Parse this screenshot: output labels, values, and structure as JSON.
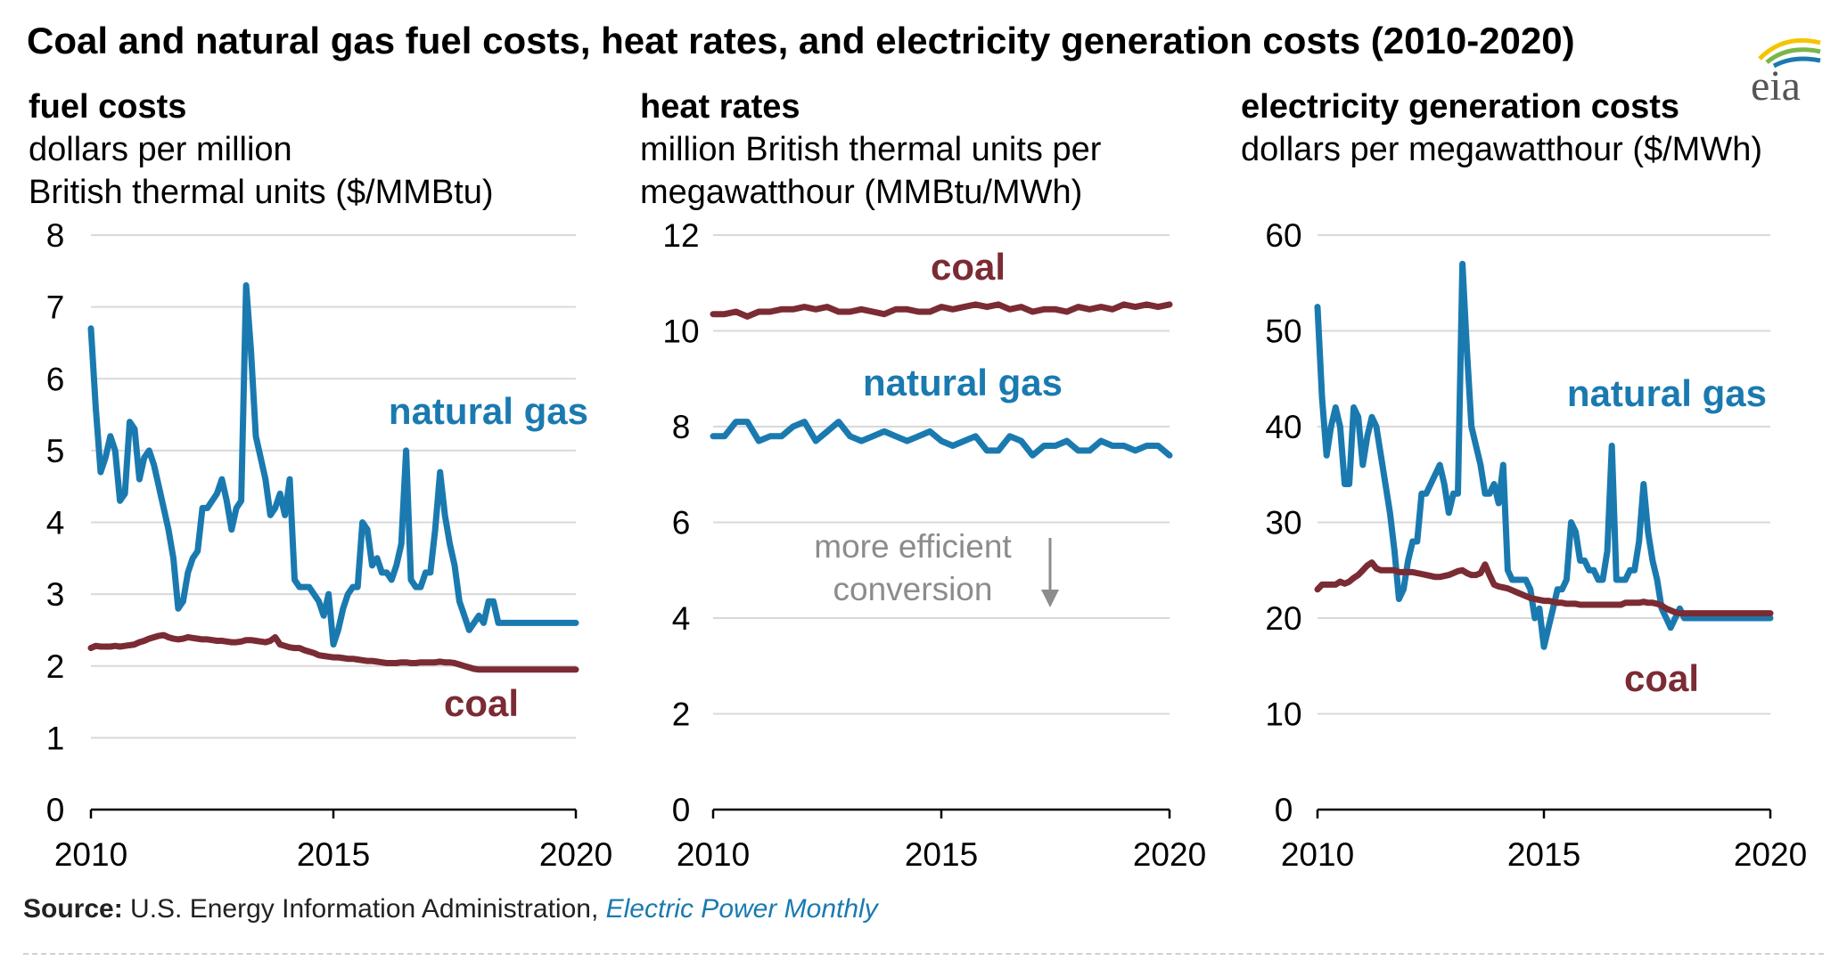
{
  "title": "Coal and natural gas fuel costs, heat rates, and electricity generation costs (2010-2020)",
  "logo_text": "eia",
  "source": {
    "label": "Source:",
    "text": "U.S. Energy Information Administration,",
    "publication": "Electric Power Monthly"
  },
  "colors": {
    "natural_gas": "#1a7ab0",
    "coal": "#7b2b33",
    "grid": "#d9d9d9",
    "annotation": "#8c8c8c"
  },
  "chart_data": [
    {
      "type": "line",
      "title": "fuel costs",
      "subtitle": [
        "dollars per million",
        "British thermal units ($/MMBtu)"
      ],
      "x": [
        2010.0,
        2010.1,
        2010.2,
        2010.3,
        2010.4,
        2010.5,
        2010.6,
        2010.7,
        2010.8,
        2010.9,
        2011.0,
        2011.1,
        2011.2,
        2011.3,
        2011.4,
        2011.5,
        2011.6,
        2011.7,
        2011.8,
        2011.9,
        2012.0,
        2012.1,
        2012.2,
        2012.3,
        2012.4,
        2012.5,
        2012.6,
        2012.7,
        2012.8,
        2012.9,
        2013.0,
        2013.1,
        2013.2,
        2013.3,
        2013.4,
        2013.5,
        2013.6,
        2013.7,
        2013.8,
        2013.9,
        2014.0,
        2014.1,
        2014.2,
        2014.3,
        2014.4,
        2014.5,
        2014.6,
        2014.7,
        2014.8,
        2014.9,
        2015.0,
        2015.1,
        2015.2,
        2015.3,
        2015.4,
        2015.5,
        2015.6,
        2015.7,
        2015.8,
        2015.9,
        2016.0,
        2016.1,
        2016.2,
        2016.3,
        2016.4,
        2016.5,
        2016.6,
        2016.7,
        2016.8,
        2016.9,
        2017.0,
        2017.1,
        2017.2,
        2017.3,
        2017.4,
        2017.5,
        2017.6,
        2017.7,
        2017.8,
        2017.9,
        2018.0,
        2018.1,
        2018.2,
        2018.3,
        2018.4,
        2018.5,
        2018.6,
        2018.7,
        2018.8,
        2018.9,
        2019.0,
        2019.1,
        2019.2,
        2019.3,
        2019.4,
        2019.5,
        2019.6,
        2019.7,
        2019.8,
        2019.9,
        2020.0
      ],
      "series": [
        {
          "name": "natural gas",
          "values": [
            6.7,
            5.6,
            4.7,
            4.9,
            5.2,
            5.0,
            4.3,
            4.4,
            5.4,
            5.3,
            4.6,
            4.9,
            5.0,
            4.8,
            4.5,
            4.2,
            3.9,
            3.5,
            2.8,
            2.9,
            3.3,
            3.5,
            3.6,
            4.2,
            4.2,
            4.3,
            4.4,
            4.6,
            4.3,
            3.9,
            4.2,
            4.3,
            7.3,
            6.4,
            5.2,
            4.9,
            4.6,
            4.1,
            4.2,
            4.4,
            4.1,
            4.6,
            3.2,
            3.1,
            3.1,
            3.1,
            3.0,
            2.9,
            2.7,
            3.0,
            2.3,
            2.5,
            2.8,
            3.0,
            3.1,
            3.1,
            4.0,
            3.9,
            3.4,
            3.5,
            3.3,
            3.3,
            3.2,
            3.4,
            3.7,
            5.0,
            3.2,
            3.1,
            3.1,
            3.3,
            3.3,
            3.9,
            4.7,
            4.1,
            3.7,
            3.4,
            2.9,
            2.7,
            2.5,
            2.6,
            2.7,
            2.6,
            2.9,
            2.9,
            2.6,
            2.6,
            2.6,
            2.6,
            2.6,
            2.6,
            2.6,
            2.6,
            2.6,
            2.6,
            2.6,
            2.6,
            2.6,
            2.6,
            2.6,
            2.6,
            2.6
          ]
        },
        {
          "name": "coal",
          "values": [
            2.25,
            2.28,
            2.27,
            2.27,
            2.27,
            2.28,
            2.27,
            2.28,
            2.29,
            2.3,
            2.33,
            2.35,
            2.38,
            2.4,
            2.42,
            2.43,
            2.4,
            2.38,
            2.37,
            2.38,
            2.4,
            2.39,
            2.38,
            2.37,
            2.37,
            2.36,
            2.35,
            2.35,
            2.34,
            2.33,
            2.33,
            2.34,
            2.36,
            2.36,
            2.35,
            2.34,
            2.33,
            2.35,
            2.4,
            2.3,
            2.28,
            2.26,
            2.25,
            2.25,
            2.22,
            2.2,
            2.18,
            2.15,
            2.14,
            2.13,
            2.12,
            2.12,
            2.11,
            2.1,
            2.1,
            2.09,
            2.08,
            2.07,
            2.07,
            2.06,
            2.05,
            2.04,
            2.04,
            2.04,
            2.05,
            2.05,
            2.04,
            2.04,
            2.05,
            2.05,
            2.05,
            2.05,
            2.06,
            2.05,
            2.05,
            2.04,
            2.02,
            2.0,
            1.98,
            1.96,
            1.95,
            1.95,
            1.95,
            1.95,
            1.95,
            1.95,
            1.95,
            1.95,
            1.95,
            1.95,
            1.95,
            1.95,
            1.95,
            1.95,
            1.95,
            1.95,
            1.95,
            1.95,
            1.95,
            1.95,
            1.95
          ]
        }
      ],
      "ylim": [
        0,
        8
      ],
      "yticks": [
        "0",
        "1",
        "2",
        "3",
        "4",
        "5",
        "6",
        "7",
        "8"
      ],
      "xticks": [
        "2010",
        "2015",
        "2020"
      ],
      "labels": {
        "gas": "natural gas",
        "coal": "coal"
      },
      "grid": "horizontal",
      "legend": "none"
    },
    {
      "type": "line",
      "title": "heat rates",
      "subtitle": [
        "million British thermal units per",
        "megawatthour (MMBtu/MWh)"
      ],
      "x": [
        2010.0,
        2010.25,
        2010.5,
        2010.75,
        2011.0,
        2011.25,
        2011.5,
        2011.75,
        2012.0,
        2012.25,
        2012.5,
        2012.75,
        2013.0,
        2013.25,
        2013.5,
        2013.75,
        2014.0,
        2014.25,
        2014.5,
        2014.75,
        2015.0,
        2015.25,
        2015.5,
        2015.75,
        2016.0,
        2016.25,
        2016.5,
        2016.75,
        2017.0,
        2017.25,
        2017.5,
        2017.75,
        2018.0,
        2018.25,
        2018.5,
        2018.75,
        2019.0,
        2019.25,
        2019.5,
        2019.75,
        2020.0
      ],
      "series": [
        {
          "name": "coal",
          "values": [
            10.35,
            10.35,
            10.4,
            10.3,
            10.4,
            10.4,
            10.45,
            10.45,
            10.5,
            10.45,
            10.5,
            10.4,
            10.4,
            10.45,
            10.4,
            10.35,
            10.45,
            10.45,
            10.4,
            10.4,
            10.5,
            10.45,
            10.5,
            10.55,
            10.5,
            10.55,
            10.45,
            10.5,
            10.4,
            10.45,
            10.45,
            10.4,
            10.5,
            10.45,
            10.5,
            10.45,
            10.55,
            10.5,
            10.55,
            10.5,
            10.55
          ]
        },
        {
          "name": "natural gas",
          "values": [
            7.8,
            7.8,
            8.1,
            8.1,
            7.7,
            7.8,
            7.8,
            8.0,
            8.1,
            7.7,
            7.9,
            8.1,
            7.8,
            7.7,
            7.8,
            7.9,
            7.8,
            7.7,
            7.8,
            7.9,
            7.7,
            7.6,
            7.7,
            7.8,
            7.5,
            7.5,
            7.8,
            7.7,
            7.4,
            7.6,
            7.6,
            7.7,
            7.5,
            7.5,
            7.7,
            7.6,
            7.6,
            7.5,
            7.6,
            7.6,
            7.4
          ]
        }
      ],
      "ylim": [
        0,
        12
      ],
      "yticks": [
        "0",
        "2",
        "4",
        "6",
        "8",
        "10",
        "12"
      ],
      "xticks": [
        "2010",
        "2015",
        "2020"
      ],
      "labels": {
        "coal": "coal",
        "gas": "natural gas"
      },
      "annotation": [
        "more efficient",
        "conversion"
      ],
      "grid": "horizontal",
      "legend": "none"
    },
    {
      "type": "line",
      "title": "electricity generation costs",
      "subtitle": [
        "dollars per megawatthour ($/MWh)"
      ],
      "x": [
        2010.0,
        2010.1,
        2010.2,
        2010.3,
        2010.4,
        2010.5,
        2010.6,
        2010.7,
        2010.8,
        2010.9,
        2011.0,
        2011.1,
        2011.2,
        2011.3,
        2011.4,
        2011.5,
        2011.6,
        2011.7,
        2011.8,
        2011.9,
        2012.0,
        2012.1,
        2012.2,
        2012.3,
        2012.4,
        2012.5,
        2012.6,
        2012.7,
        2012.8,
        2012.9,
        2013.0,
        2013.1,
        2013.2,
        2013.3,
        2013.4,
        2013.5,
        2013.6,
        2013.7,
        2013.8,
        2013.9,
        2014.0,
        2014.1,
        2014.2,
        2014.3,
        2014.4,
        2014.5,
        2014.6,
        2014.7,
        2014.8,
        2014.9,
        2015.0,
        2015.1,
        2015.2,
        2015.3,
        2015.4,
        2015.5,
        2015.6,
        2015.7,
        2015.8,
        2015.9,
        2016.0,
        2016.1,
        2016.2,
        2016.3,
        2016.4,
        2016.5,
        2016.6,
        2016.7,
        2016.8,
        2016.9,
        2017.0,
        2017.1,
        2017.2,
        2017.3,
        2017.4,
        2017.5,
        2017.6,
        2017.7,
        2017.8,
        2017.9,
        2018.0,
        2018.1,
        2018.2,
        2018.3,
        2018.4,
        2018.5,
        2018.6,
        2018.7,
        2018.8,
        2018.9,
        2019.0,
        2019.1,
        2019.2,
        2019.3,
        2019.4,
        2019.5,
        2019.6,
        2019.7,
        2019.8,
        2019.9,
        2020.0
      ],
      "series": [
        {
          "name": "natural gas",
          "values": [
            52.5,
            43,
            37,
            40,
            42,
            40,
            34,
            34,
            42,
            41,
            36,
            39,
            41,
            40,
            37,
            34,
            31,
            27,
            22,
            23,
            26,
            28,
            28,
            33,
            33,
            34,
            35,
            36,
            34,
            31,
            33,
            33,
            57,
            48,
            40,
            38,
            36,
            33,
            33,
            34,
            32,
            36,
            25,
            24,
            24,
            24,
            24,
            23,
            20,
            21,
            17,
            19,
            21,
            23,
            23,
            24,
            30,
            29,
            26,
            26,
            25,
            25,
            24,
            24,
            27,
            38,
            24,
            24,
            24,
            25,
            25,
            28,
            34,
            29,
            26,
            24,
            21,
            20,
            19,
            20,
            21,
            20,
            20,
            20,
            20,
            20,
            20,
            20,
            20,
            20,
            20,
            20,
            20,
            20,
            20,
            20,
            20,
            20,
            20,
            20,
            20
          ]
        },
        {
          "name": "coal",
          "values": [
            23,
            23.5,
            23.5,
            23.5,
            23.5,
            23.8,
            23.6,
            23.8,
            24.2,
            24.5,
            25,
            25.5,
            25.8,
            25.2,
            25,
            25,
            25,
            25,
            24.8,
            24.8,
            24.8,
            24.8,
            24.7,
            24.6,
            24.5,
            24.4,
            24.3,
            24.3,
            24.4,
            24.5,
            24.7,
            24.9,
            25,
            24.7,
            24.5,
            24.5,
            24.7,
            25.6,
            24.5,
            23.5,
            23.3,
            23.2,
            23.1,
            22.9,
            22.7,
            22.5,
            22.3,
            22.1,
            22.0,
            21.9,
            21.8,
            21.8,
            21.7,
            21.6,
            21.6,
            21.5,
            21.5,
            21.5,
            21.4,
            21.4,
            21.4,
            21.4,
            21.4,
            21.4,
            21.4,
            21.4,
            21.4,
            21.4,
            21.6,
            21.6,
            21.6,
            21.6,
            21.7,
            21.6,
            21.6,
            21.5,
            21.3,
            21.0,
            20.8,
            20.6,
            20.5,
            20.5,
            20.5,
            20.5,
            20.5,
            20.5,
            20.5,
            20.5,
            20.5,
            20.5,
            20.5,
            20.5,
            20.5,
            20.5,
            20.5,
            20.5,
            20.5,
            20.5,
            20.5,
            20.5,
            20.5
          ]
        }
      ],
      "ylim": [
        0,
        60
      ],
      "yticks": [
        "0",
        "10",
        "20",
        "30",
        "40",
        "50",
        "60"
      ],
      "xticks": [
        "2010",
        "2015",
        "2020"
      ],
      "labels": {
        "gas": "natural gas",
        "coal": "coal"
      },
      "grid": "horizontal",
      "legend": "none"
    }
  ]
}
